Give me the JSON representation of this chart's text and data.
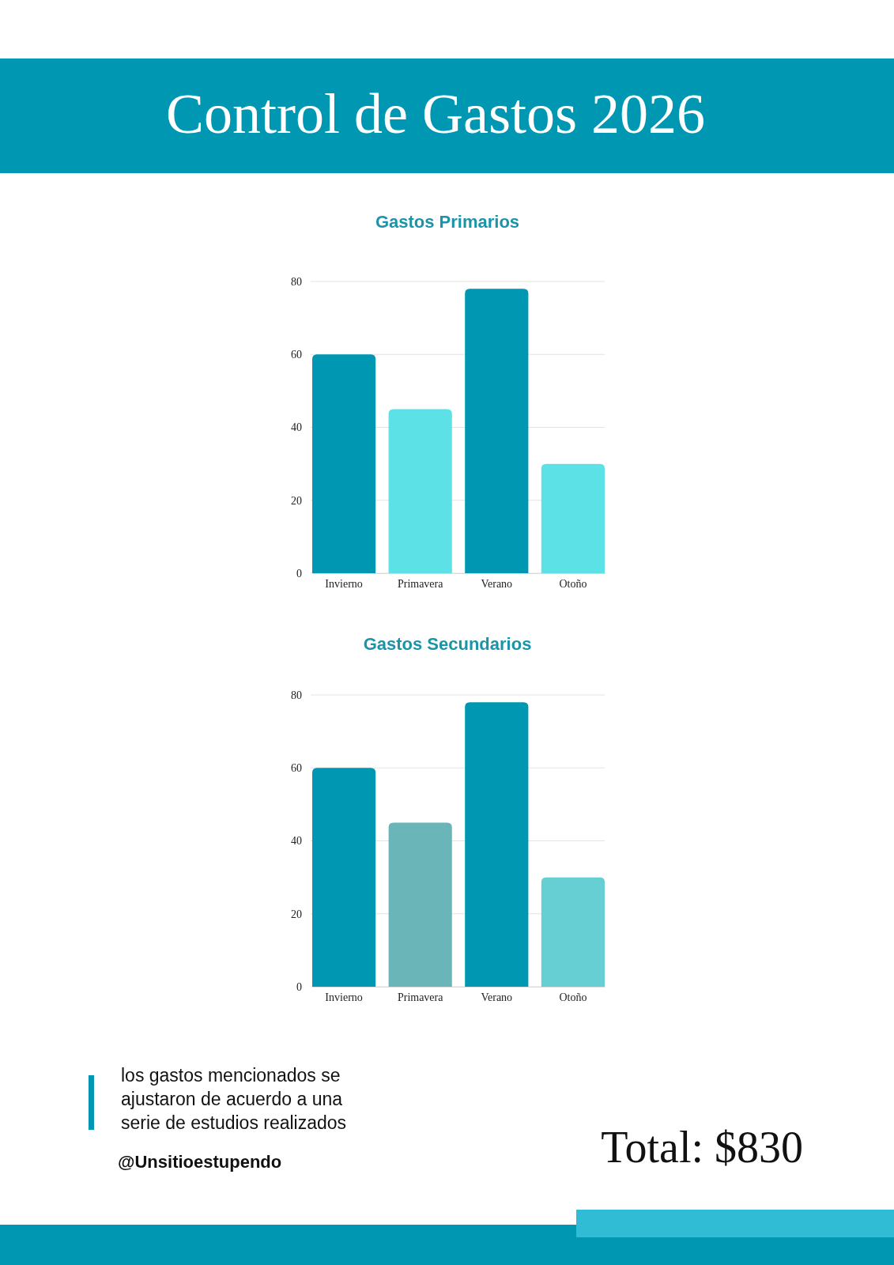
{
  "chart_data": [
    {
      "type": "other",
      "title": "Control de Gastos 2026"
    },
    {
      "type": "bar",
      "title": "Gastos Primarios",
      "categories": [
        "Invierno",
        "Primavera",
        "Verano",
        "Otoño"
      ],
      "values": [
        60,
        45,
        78,
        30
      ],
      "colors": [
        "#0097b2",
        "#5ce1e6",
        "#0097b2",
        "#5ce1e6"
      ],
      "ylim": [
        0,
        80
      ],
      "yticks": [
        0,
        20,
        40,
        60,
        80
      ],
      "grid": "y"
    },
    {
      "type": "bar",
      "title": "Gastos Secundarios",
      "categories": [
        "Invierno",
        "Primavera",
        "Verano",
        "Otoño"
      ],
      "values": [
        60,
        45,
        78,
        30
      ],
      "colors": [
        "#0097b2",
        "#6ab5b8",
        "#0097b2",
        "#66cfd3"
      ],
      "ylim": [
        0,
        80
      ],
      "yticks": [
        0,
        20,
        40,
        60,
        80
      ],
      "grid": "y"
    },
    {
      "type": "other",
      "annotations": [
        "los gastos mencionados se ajustaron de acuerdo a una serie de estudios realizados",
        "@Unsitioestupendo",
        "Total: $830"
      ]
    }
  ]
}
